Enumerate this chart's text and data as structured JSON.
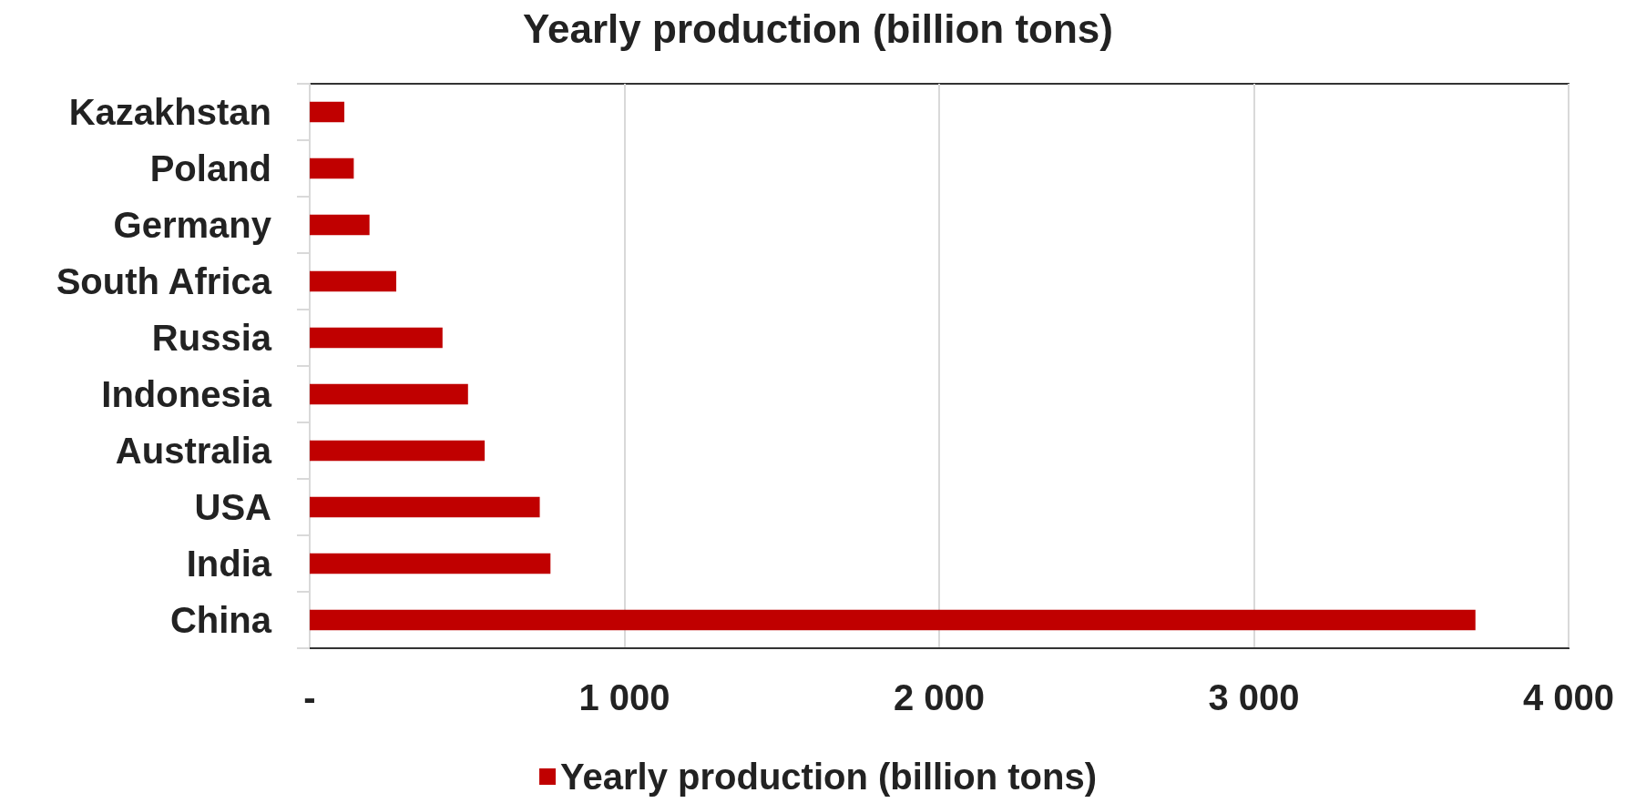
{
  "chart_data": {
    "type": "bar",
    "orientation": "horizontal",
    "title": "Yearly production (billion tons)",
    "categories": [
      "Kazakhstan",
      "Poland",
      "Germany",
      "South Africa",
      "Russia",
      "Indonesia",
      "Australia",
      "USA",
      "India",
      "China"
    ],
    "series": [
      {
        "name": "Yearly production (billion tons)",
        "color": "#c00000",
        "values": [
          110,
          140,
          190,
          275,
          422,
          503,
          556,
          731,
          765,
          3704
        ]
      }
    ],
    "xlim": [
      0,
      4000
    ],
    "xticks": [
      {
        "value": 0,
        "label": "-"
      },
      {
        "value": 1000,
        "label": "1 000"
      },
      {
        "value": 2000,
        "label": "2 000"
      },
      {
        "value": 3000,
        "label": "3 000"
      },
      {
        "value": 4000,
        "label": "4 000"
      }
    ],
    "grid": "x",
    "legend": "bottom"
  }
}
